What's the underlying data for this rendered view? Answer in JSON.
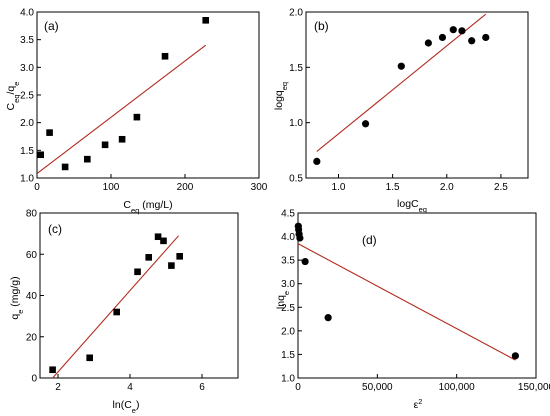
{
  "chart_data": [
    {
      "type": "scatter",
      "panel_label": "(a)",
      "xlabel_main": "C",
      "xlabel_sub": "eq",
      "xlabel_unit": " (mg/L)",
      "ylabel_main": "C",
      "ylabel_sub1": "eq",
      "ylabel_sep": "/q",
      "ylabel_sub2": "e",
      "xlim": [
        0,
        300
      ],
      "ylim": [
        1.0,
        4.0
      ],
      "xticks": [
        0,
        100,
        200,
        300
      ],
      "yticks": [
        1.0,
        1.5,
        2.0,
        2.5,
        3.0,
        3.5,
        4.0
      ],
      "xtick_labels": [
        "0",
        "100",
        "200",
        "300"
      ],
      "ytick_labels": [
        "1.0",
        "1.5",
        "2.0",
        "2.5",
        "3.0",
        "3.5",
        "4.0"
      ],
      "marker": "square",
      "x": [
        5,
        17,
        38,
        68,
        92,
        115,
        135,
        173,
        228
      ],
      "y": [
        1.42,
        1.82,
        1.2,
        1.34,
        1.6,
        1.7,
        2.1,
        3.2,
        3.85
      ],
      "fit_line": {
        "x": [
          0,
          228
        ],
        "y": [
          1.08,
          3.4
        ]
      },
      "grid": false
    },
    {
      "type": "scatter",
      "panel_label": "(b)",
      "xlabel_main": "logC",
      "xlabel_sub": "eq",
      "ylabel_main": "logq",
      "ylabel_sub": "eq",
      "xlim": [
        0.7,
        2.75
      ],
      "ylim": [
        0.5,
        2.0
      ],
      "xticks": [
        1.0,
        1.5,
        2.0,
        2.5
      ],
      "yticks": [
        0.5,
        1.0,
        1.5,
        2.0
      ],
      "xtick_labels": [
        "1.0",
        "1.5",
        "2.0",
        "2.5"
      ],
      "ytick_labels": [
        "0.5",
        "1.0",
        "1.5",
        "2.0"
      ],
      "marker": "circle",
      "x": [
        0.8,
        1.25,
        1.58,
        1.83,
        1.96,
        2.06,
        2.14,
        2.23,
        2.36
      ],
      "y": [
        0.65,
        0.99,
        1.51,
        1.72,
        1.77,
        1.84,
        1.83,
        1.74,
        1.77
      ],
      "fit_line": {
        "x": [
          0.8,
          2.36
        ],
        "y": [
          0.74,
          1.98
        ]
      },
      "grid": false
    },
    {
      "type": "scatter",
      "panel_label": "(c)",
      "xlabel_main": "ln(C",
      "xlabel_sub": "e",
      "xlabel_end": ")",
      "ylabel_main": "q",
      "ylabel_sub": "e",
      "ylabel_unit": " (mg/g)",
      "xlim": [
        1.5,
        7.0
      ],
      "ylim": [
        0,
        80
      ],
      "xticks": [
        2,
        4,
        6
      ],
      "yticks": [
        0,
        20,
        40,
        60,
        80
      ],
      "xtick_labels": [
        "2",
        "4",
        "6"
      ],
      "ytick_labels": [
        "0",
        "20",
        "40",
        "60",
        "80"
      ],
      "marker": "square",
      "x": [
        1.85,
        2.88,
        3.63,
        4.21,
        4.52,
        4.78,
        4.93,
        5.15,
        5.38
      ],
      "y": [
        4,
        9.8,
        32,
        51.5,
        58.5,
        68.5,
        66.5,
        54.5,
        59
      ],
      "fit_line": {
        "x": [
          1.85,
          5.35
        ],
        "y": [
          0,
          69
        ]
      },
      "grid": false
    },
    {
      "type": "scatter",
      "panel_label": "(d)",
      "xlabel_main": "ε",
      "xlabel_sup": "2",
      "ylabel_main": "lnq",
      "ylabel_sub": "e",
      "xlim": [
        0,
        150000
      ],
      "ylim": [
        1.0,
        4.5
      ],
      "xticks": [
        0,
        50000,
        100000,
        150000
      ],
      "yticks": [
        1.0,
        1.5,
        2.0,
        2.5,
        3.0,
        3.5,
        4.0,
        4.5
      ],
      "xtick_labels": [
        "0",
        "50,000",
        "100,000",
        "150,000"
      ],
      "ytick_labels": [
        "1.0",
        "1.5",
        "2.0",
        "2.5",
        "3.0",
        "3.5",
        "4.0",
        "4.5"
      ],
      "marker": "circle",
      "x": [
        200,
        400,
        700,
        1200,
        4500,
        19000,
        137000
      ],
      "y": [
        4.22,
        4.15,
        4.05,
        3.97,
        3.47,
        2.28,
        1.47
      ],
      "fit_line": {
        "x": [
          0,
          137000
        ],
        "y": [
          3.85,
          1.38
        ]
      },
      "grid": false
    }
  ]
}
